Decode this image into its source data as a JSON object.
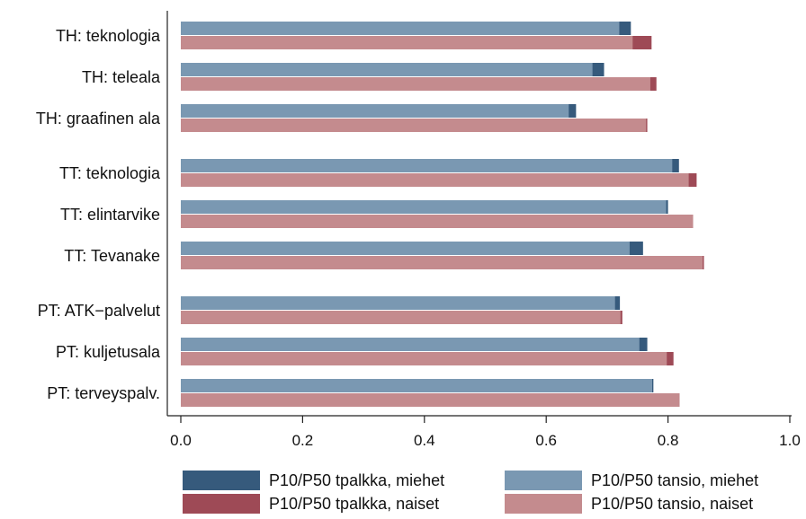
{
  "chart_data": {
    "type": "bar",
    "orientation": "horizontal",
    "categories": [
      "TH: teknologia",
      "TH: teleala",
      "TH: graafinen ala",
      "TT: teknologia",
      "TT: elintarvike",
      "TT: Tevanake",
      "PT: ATK−palvelut",
      "PT: kuljetusala",
      "PT: terveyspalv."
    ],
    "series": [
      {
        "name": "P10/P50 tpalkka, miehet",
        "color": "#365A7C",
        "values": [
          0.739,
          0.695,
          0.649,
          0.818,
          0.8,
          0.759,
          0.721,
          0.766,
          0.776
        ]
      },
      {
        "name": "P10/P50 tansio, miehet",
        "color": "#7A98B2",
        "values": [
          0.72,
          0.676,
          0.637,
          0.807,
          0.797,
          0.737,
          0.713,
          0.753,
          0.774
        ]
      },
      {
        "name": "P10/P50 tpalkka, naiset",
        "color": "#9E4A56",
        "values": [
          0.773,
          0.781,
          0.766,
          0.847,
          0.841,
          0.859,
          0.725,
          0.809,
          0.819
        ]
      },
      {
        "name": "P10/P50 tansio, naiset",
        "color": "#C48B8E",
        "values": [
          0.742,
          0.771,
          0.764,
          0.834,
          0.841,
          0.857,
          0.722,
          0.798,
          0.819
        ]
      }
    ],
    "xlim": [
      0,
      1.0
    ],
    "xticks": [
      "0.0",
      "0.2",
      "0.4",
      "0.6",
      "0.8",
      "1.0"
    ],
    "grid": false,
    "legend_position": "bottom"
  }
}
